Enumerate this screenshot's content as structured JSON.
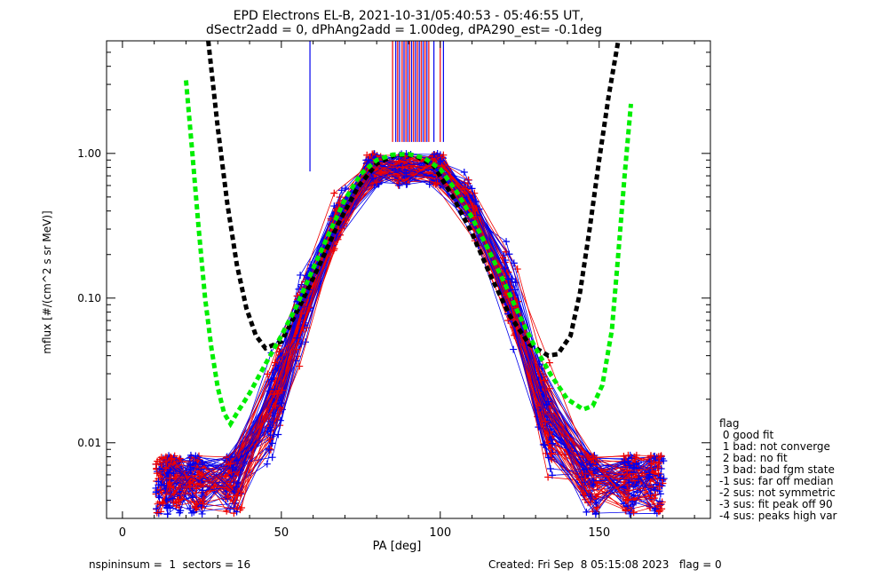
{
  "chart_data": {
    "type": "line",
    "title": "EPD Electrons EL-B, 2021-10-31/05:40:53 - 05:46:55 UT,",
    "subtitle": "dSectr2add = 0, dPhAng2add = 1.00deg, dPA290_est=  -0.1deg",
    "xlabel": "PA [deg]",
    "ylabel": "mflux [#/(cm^2 s sr MeV)]",
    "xlim": [
      -5,
      185
    ],
    "ylim": [
      0.003,
      6
    ],
    "yscale": "log",
    "xticks": [
      "0",
      "50",
      "100",
      "150"
    ],
    "xtick_values": [
      0,
      50,
      100,
      150
    ],
    "yticks": [
      "0.01",
      "0.10",
      "1.00"
    ],
    "ytick_values": [
      0.01,
      0.1,
      1.0
    ],
    "colors": {
      "red": "#ee0000",
      "blue": "#0000ee",
      "black": "#000000",
      "green": "#00ee00"
    },
    "fit_curves": [
      {
        "color": "#000000",
        "x": [
          27,
          30,
          33,
          36,
          39,
          42,
          45,
          50,
          56,
          62,
          68,
          74,
          80,
          86,
          92,
          98,
          104,
          110,
          116,
          122,
          128,
          134,
          137,
          141,
          144,
          147,
          150,
          153,
          156
        ],
        "y": [
          6,
          1.5,
          0.45,
          0.17,
          0.085,
          0.055,
          0.045,
          0.05,
          0.09,
          0.17,
          0.33,
          0.58,
          0.85,
          0.98,
          0.97,
          0.82,
          0.5,
          0.28,
          0.14,
          0.075,
          0.048,
          0.04,
          0.041,
          0.055,
          0.11,
          0.3,
          0.9,
          2.5,
          6
        ]
      },
      {
        "color": "#00ee00",
        "x": [
          20,
          22,
          24,
          26,
          28,
          30,
          32,
          34,
          36,
          40,
          45,
          50,
          55,
          60,
          65,
          70,
          75,
          80,
          85,
          90,
          95,
          100,
          105,
          110,
          115,
          120,
          125,
          130,
          135,
          140,
          145,
          148,
          151,
          154,
          156,
          158,
          160
        ],
        "y": [
          3.2,
          1.0,
          0.3,
          0.1,
          0.045,
          0.024,
          0.016,
          0.0135,
          0.016,
          0.022,
          0.035,
          0.055,
          0.09,
          0.16,
          0.28,
          0.48,
          0.72,
          0.9,
          0.98,
          0.99,
          0.93,
          0.78,
          0.55,
          0.36,
          0.22,
          0.13,
          0.075,
          0.045,
          0.029,
          0.02,
          0.017,
          0.018,
          0.025,
          0.06,
          0.2,
          0.7,
          2.2
        ]
      }
    ],
    "spikes_x": [
      59,
      85,
      86,
      86.6,
      87.2,
      88,
      88.6,
      89.2,
      89.8,
      90.4,
      91,
      91.6,
      92.2,
      92.8,
      93.4,
      94,
      94.6,
      95.2,
      95.8,
      96.4,
      98,
      100,
      101
    ],
    "spikes_top": 6,
    "spikes_bottom": 1.2,
    "n_traces": 90,
    "legend": {
      "title": "flag",
      "entries": [
        " 0 good fit",
        " 1 bad: not converge",
        " 2 bad: no fit",
        " 3 bad: bad fgm state",
        "-1 sus: far off median",
        "-2 sus: not symmetric",
        "-3 sus: fit peak off 90",
        "-4 sus: peaks high var"
      ],
      "placement": "right"
    }
  },
  "footer": {
    "left": "nspininsum =  1  sectors = 16",
    "right": "Created: Fri Sep  8 05:15:08 2023   flag = 0"
  }
}
